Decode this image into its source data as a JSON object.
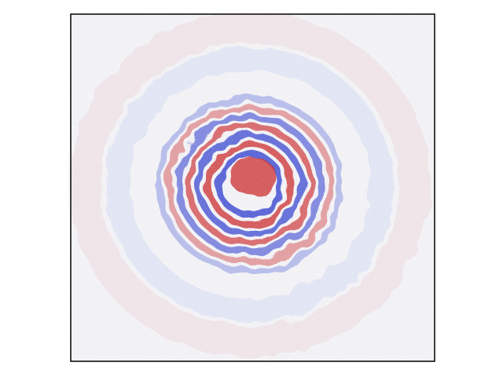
{
  "chart_data": {
    "type": "image",
    "colors": [
      "#d03030",
      "#3040d0"
    ]
  }
}
